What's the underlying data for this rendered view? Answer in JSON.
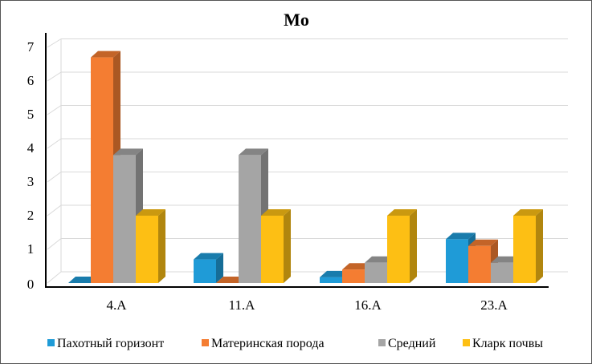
{
  "chart_data": {
    "type": "bar",
    "title": "Mo",
    "categories": [
      "4.A",
      "11.A",
      "16.A",
      "23.A"
    ],
    "series": [
      {
        "name": "Пахотный горизонт",
        "color": "#1f9bd7",
        "values": [
          0.0,
          0.7,
          0.17,
          1.3
        ]
      },
      {
        "name": "Материнская порода",
        "color": "#f47d32",
        "values": [
          6.7,
          0.0,
          0.4,
          1.1
        ]
      },
      {
        "name": "Средний",
        "color": "#a5a5a5",
        "values": [
          3.8,
          3.8,
          0.6,
          0.6
        ]
      },
      {
        "name": "Кларк почвы",
        "color": "#fdbf14",
        "values": [
          2.0,
          2.0,
          2.0,
          2.0
        ]
      }
    ],
    "yticks": [
      "0",
      "1",
      "2",
      "3",
      "4",
      "5",
      "6",
      "7"
    ],
    "ylim": [
      0,
      7
    ],
    "xlabel": "",
    "ylabel": "",
    "grid": true,
    "legend": "bottom"
  }
}
